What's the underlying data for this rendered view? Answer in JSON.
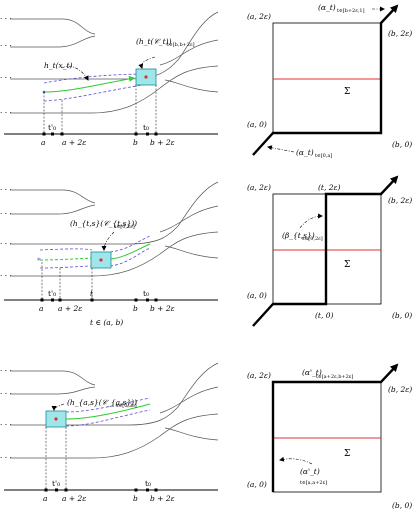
{
  "panel1": {
    "axis_labels": [
      "a",
      "a + 2ε",
      "b",
      "b + 2ε"
    ],
    "tick_labels": [
      "t'₀",
      "t₀"
    ],
    "curve_label": "h_t(x_t)",
    "box_label": "(h_t(𝒞_t))",
    "box_label_sub": "t∈[b,b+2ε]",
    "square": {
      "corners": [
        "(a, 2ε)",
        "(b, 2ε)",
        "(a, 0)",
        "(b, 0)"
      ],
      "sigma": "Σ",
      "top_label": "(α_t)",
      "top_label_sub": "t∈[b+2ε,1]",
      "bottom_label": "(α_t)",
      "bottom_label_sub": "t∈[0,a]"
    }
  },
  "panel2": {
    "axis_labels": [
      "a",
      "a + 2ε",
      "t",
      "b",
      "b + 2ε"
    ],
    "tick_labels": [
      "t'₀",
      "t₀"
    ],
    "box_label": "(h_{t,s}(𝒞_{t,s}))",
    "box_label_sub": "s∈[0,2ε]",
    "caption": "t ∈ (a, b)",
    "square": {
      "corners": [
        "(a, 2ε)",
        "(t, 2ε)",
        "(b, 2ε)",
        "(a, 0)",
        "(t, 0)",
        "(b, 0)"
      ],
      "sigma": "Σ",
      "beta_label": "(β_{t,s})",
      "beta_label_sub": "s∈[0,2ε]"
    }
  },
  "panel3": {
    "axis_labels": [
      "a",
      "a + 2ε",
      "b",
      "b + 2ε"
    ],
    "tick_labels": [
      "t'₀",
      "t₀"
    ],
    "box_label": "(h_{a,s}(𝒞_{a,s}))",
    "box_label_sub": "s∈[0,2ε]",
    "square": {
      "corners": [
        "(a, 2ε)",
        "(b, 2ε)",
        "(a, 0)",
        "(b, 0)"
      ],
      "sigma": "Σ",
      "top_label": "(α'_t)",
      "top_label_sub": "t∈[a+2ε,b+2ε]",
      "left_label": "(α'_t)",
      "left_label_sub": "t∈[a,a+2ε]"
    }
  }
}
